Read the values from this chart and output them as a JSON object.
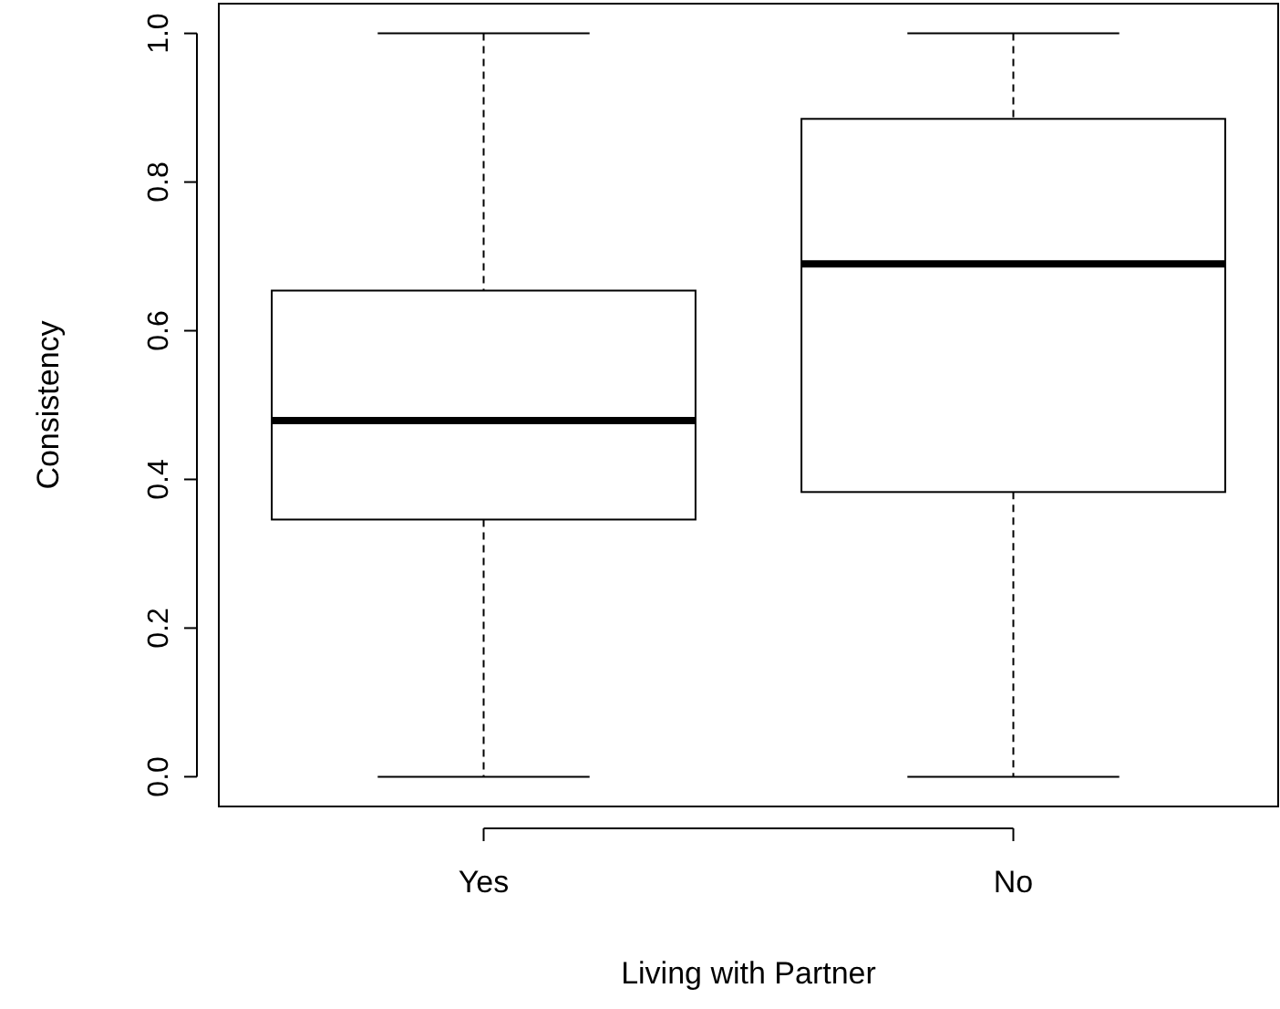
{
  "chart_data": {
    "type": "box",
    "xlabel": "Living with Partner",
    "ylabel": "Consistency",
    "categories": [
      "Yes",
      "No"
    ],
    "boxes": [
      {
        "low": 0,
        "q1": 0.346,
        "median": 0.479,
        "q3": 0.654,
        "high": 1
      },
      {
        "low": 0,
        "q1": 0.383,
        "median": 0.69,
        "q3": 0.885,
        "high": 1
      }
    ],
    "ylim": [
      -0.04,
      1.04
    ],
    "yticks": [
      {
        "value": 0,
        "label": "0.0"
      },
      {
        "value": 0.2,
        "label": "0.2"
      },
      {
        "value": 0.4,
        "label": "0.4"
      },
      {
        "value": 0.6,
        "label": "0.6"
      },
      {
        "value": 0.8,
        "label": "0.8"
      },
      {
        "value": 1,
        "label": "1.0"
      }
    ]
  }
}
